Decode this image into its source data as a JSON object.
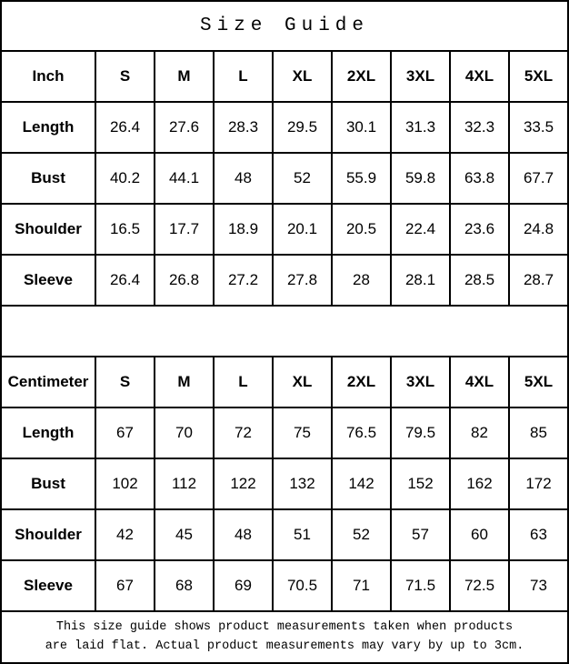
{
  "title": "Size Guide",
  "colors": {
    "border": "#000000",
    "background": "#ffffff",
    "text": "#000000"
  },
  "tables": [
    {
      "name": "inch",
      "header": [
        "Inch",
        "S",
        "M",
        "L",
        "XL",
        "2XL",
        "3XL",
        "4XL",
        "5XL"
      ],
      "rows": [
        {
          "label": "Length",
          "values": [
            "26.4",
            "27.6",
            "28.3",
            "29.5",
            "30.1",
            "31.3",
            "32.3",
            "33.5"
          ]
        },
        {
          "label": "Bust",
          "values": [
            "40.2",
            "44.1",
            "48",
            "52",
            "55.9",
            "59.8",
            "63.8",
            "67.7"
          ]
        },
        {
          "label": "Shoulder",
          "values": [
            "16.5",
            "17.7",
            "18.9",
            "20.1",
            "20.5",
            "22.4",
            "23.6",
            "24.8"
          ]
        },
        {
          "label": "Sleeve",
          "values": [
            "26.4",
            "26.8",
            "27.2",
            "27.8",
            "28",
            "28.1",
            "28.5",
            "28.7"
          ]
        }
      ]
    },
    {
      "name": "centimeter",
      "header": [
        "Centimeter",
        "S",
        "M",
        "L",
        "XL",
        "2XL",
        "3XL",
        "4XL",
        "5XL"
      ],
      "rows": [
        {
          "label": "Length",
          "values": [
            "67",
            "70",
            "72",
            "75",
            "76.5",
            "79.5",
            "82",
            "85"
          ]
        },
        {
          "label": "Bust",
          "values": [
            "102",
            "112",
            "122",
            "132",
            "142",
            "152",
            "162",
            "172"
          ]
        },
        {
          "label": "Shoulder",
          "values": [
            "42",
            "45",
            "48",
            "51",
            "52",
            "57",
            "60",
            "63"
          ]
        },
        {
          "label": "Sleeve",
          "values": [
            "67",
            "68",
            "69",
            "70.5",
            "71",
            "71.5",
            "72.5",
            "73"
          ]
        }
      ]
    }
  ],
  "footer": {
    "line1": "This size guide shows product measurements taken when products",
    "line2": "are laid flat. Actual product measurements may vary by up to 3cm."
  }
}
